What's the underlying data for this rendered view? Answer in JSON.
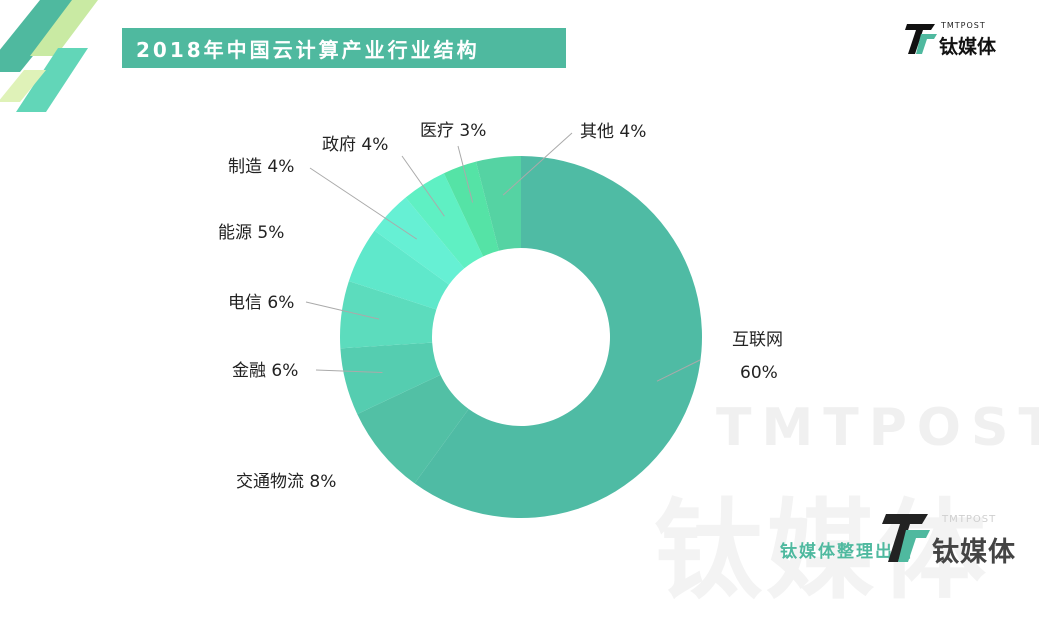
{
  "header": {
    "title": "2018年中国云计算产业行业结构"
  },
  "brand": {
    "name_en": "TMTPOST",
    "name_cn": "钛媒体",
    "credit": "钛媒体整理出品",
    "accent_color": "#4fb99f"
  },
  "watermark": {
    "en": "TMTPOST",
    "cn": "钛媒体"
  },
  "chart_data": {
    "type": "pie",
    "donut": true,
    "title": "2018年中国云计算产业行业结构",
    "unit": "%",
    "slices": [
      {
        "name": "互联网",
        "value": 60,
        "label_line1": "互联网",
        "label_line2": "60%",
        "color": "#4fbba4"
      },
      {
        "name": "交通物流",
        "value": 8,
        "label_line1": "交通物流 8%",
        "color": "#52c0a5"
      },
      {
        "name": "金融",
        "value": 6,
        "label_line1": "金融 6%",
        "color": "#55cdb0"
      },
      {
        "name": "电信",
        "value": 6,
        "label_line1": "电信 6%",
        "color": "#5cdcbd"
      },
      {
        "name": "能源",
        "value": 5,
        "label_line1": "能源 5%",
        "color": "#5fe8cb"
      },
      {
        "name": "制造",
        "value": 4,
        "label_line1": "制造 4%",
        "color": "#66f0d4"
      },
      {
        "name": "政府",
        "value": 4,
        "label_line1": "政府 4%",
        "color": "#5ff0c3"
      },
      {
        "name": "医疗",
        "value": 3,
        "label_line1": "医疗 3%",
        "color": "#55e3a6"
      },
      {
        "name": "其他",
        "value": 4,
        "label_line1": "其他 4%",
        "color": "#55d3a3"
      }
    ]
  }
}
